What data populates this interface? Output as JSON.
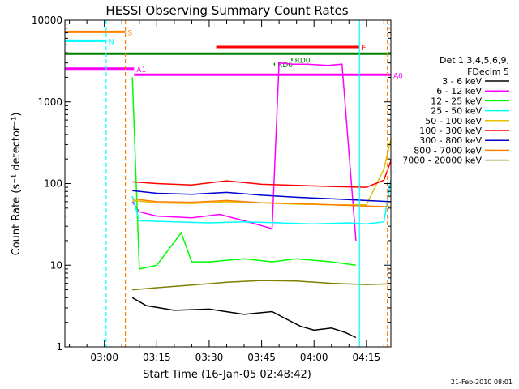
{
  "chart_data": {
    "type": "line",
    "title": "HESSI Observing Summary Count Rates",
    "xlabel": "Start Time (16-Jan-05 02:48:42)",
    "ylabel": "Count Rate (s⁻¹ detector⁻¹)",
    "yscale": "log",
    "ylim": [
      1,
      10000
    ],
    "xlim": [
      "02:48:42",
      "04:22:00"
    ],
    "x_ticks": [
      "03:00",
      "03:15",
      "03:30",
      "03:45",
      "04:00",
      "04:15"
    ],
    "y_ticks": [
      "1",
      "10",
      "100",
      "1000",
      "10000"
    ],
    "footer": "21-Feb-2010 08:01",
    "legend": {
      "header_1": "Det 1,3,4,5,6,9,",
      "header_2": "FDecim 5",
      "placement": "right",
      "entries": [
        {
          "label": "3 - 6 keV",
          "color": "#000000"
        },
        {
          "label": "6 - 12 keV",
          "color": "#ff00ff"
        },
        {
          "label": "12 - 25 keV",
          "color": "#00ff00"
        },
        {
          "label": "25 - 50 keV",
          "color": "#00ffff"
        },
        {
          "label": "50 - 100 keV",
          "color": "#e0c000"
        },
        {
          "label": "100 - 300 keV",
          "color": "#ff0000"
        },
        {
          "label": "300 - 800 keV",
          "color": "#0000cc"
        },
        {
          "label": "800 - 7000 keV",
          "color": "#ff8000"
        },
        {
          "label": "7000 - 20000 keV",
          "color": "#808000"
        }
      ]
    },
    "flags": [
      {
        "label": "S",
        "color": "#ff8000",
        "start": "02:48:42",
        "end": "03:06:00",
        "level": 7200
      },
      {
        "label": "N",
        "color": "#00ffff",
        "start": "02:48:42",
        "end": "03:00:30",
        "level": 5600
      },
      {
        "label": "F",
        "color": "#ff0000",
        "start": "03:32:00",
        "end": "04:13:00",
        "level": 4700
      },
      {
        "label": "",
        "color": "#008000",
        "start": "02:48:42",
        "end": "04:22:00",
        "level": 3900
      },
      {
        "label": "A1",
        "color": "#ff00ff",
        "start": "02:48:42",
        "end": "03:08:30",
        "level": 2550
      },
      {
        "label": "A0",
        "color": "#ff00ff",
        "start": "03:08:30",
        "end": "04:22:00",
        "level": 2150
      },
      {
        "label": "RD6",
        "color": "#008000",
        "start": "03:48:30",
        "end": "03:48:50",
        "level": 2900
      },
      {
        "label": "RD0",
        "color": "#008000",
        "start": "03:53:30",
        "end": "03:53:50",
        "level": 3300
      }
    ],
    "series": [
      {
        "name": "3 - 6 keV",
        "color": "#000000",
        "x": [
          "03:08",
          "03:12",
          "03:20",
          "03:30",
          "03:40",
          "03:48",
          "03:52",
          "03:56",
          "04:00",
          "04:05",
          "04:09",
          "04:12"
        ],
        "y": [
          4,
          3.2,
          2.8,
          2.9,
          2.5,
          2.7,
          2.2,
          1.8,
          1.6,
          1.7,
          1.5,
          1.3
        ]
      },
      {
        "name": "6 - 12 keV",
        "color": "#ff00ff",
        "x": [
          "03:08",
          "03:10",
          "03:15",
          "03:25",
          "03:33",
          "03:40",
          "03:48",
          "03:50",
          "03:54",
          "03:58",
          "04:04",
          "04:08",
          "04:12"
        ],
        "y": [
          60,
          45,
          40,
          38,
          42,
          35,
          28,
          3000,
          2900,
          2900,
          2800,
          2900,
          20
        ]
      },
      {
        "name": "12 - 25 keV",
        "color": "#00ff00",
        "x": [
          "03:08",
          "03:10",
          "03:15",
          "03:22",
          "03:25",
          "03:30",
          "03:40",
          "03:48",
          "03:55",
          "04:05",
          "04:12"
        ],
        "y": [
          2000,
          9,
          10,
          25,
          11,
          11,
          12,
          11,
          12,
          11,
          10
        ]
      },
      {
        "name": "25 - 50 keV",
        "color": "#00ffff",
        "x": [
          "03:08",
          "03:10",
          "03:20",
          "03:30",
          "03:40",
          "03:50",
          "04:00",
          "04:10",
          "04:15",
          "04:20",
          "04:22"
        ],
        "y": [
          70,
          35,
          34,
          33,
          34,
          33,
          32,
          33,
          32,
          34,
          110
        ]
      },
      {
        "name": "50 - 100 keV",
        "color": "#e0c000",
        "x": [
          "03:08",
          "03:15",
          "03:25",
          "03:35",
          "03:45",
          "03:55",
          "04:05",
          "04:15",
          "04:20",
          "04:22"
        ],
        "y": [
          62,
          58,
          57,
          60,
          58,
          56,
          55,
          55,
          150,
          350
        ]
      },
      {
        "name": "100 - 300 keV",
        "color": "#ff0000",
        "x": [
          "03:08",
          "03:15",
          "03:25",
          "03:35",
          "03:45",
          "03:55",
          "04:05",
          "04:15",
          "04:20",
          "04:22"
        ],
        "y": [
          105,
          100,
          96,
          108,
          98,
          95,
          92,
          90,
          110,
          190
        ]
      },
      {
        "name": "300 - 800 keV",
        "color": "#0000cc",
        "x": [
          "03:08",
          "03:15",
          "03:25",
          "03:35",
          "03:45",
          "03:55",
          "04:05",
          "04:15",
          "04:22"
        ],
        "y": [
          82,
          76,
          74,
          78,
          72,
          68,
          65,
          62,
          60
        ]
      },
      {
        "name": "800 - 7000 keV",
        "color": "#ff8000",
        "x": [
          "03:08",
          "03:15",
          "03:25",
          "03:35",
          "03:45",
          "03:55",
          "04:05",
          "04:15",
          "04:22"
        ],
        "y": [
          65,
          60,
          59,
          62,
          58,
          57,
          55,
          53,
          52
        ]
      },
      {
        "name": "7000 - 20000 keV",
        "color": "#808000",
        "x": [
          "03:08",
          "03:15",
          "03:25",
          "03:35",
          "03:45",
          "03:55",
          "04:05",
          "04:15",
          "04:22"
        ],
        "y": [
          5,
          5.3,
          5.7,
          6.2,
          6.5,
          6.4,
          6.0,
          5.8,
          5.9
        ]
      }
    ],
    "vertical_markers": [
      {
        "x": "03:00:30",
        "color": "#00ffff",
        "style": "dashed"
      },
      {
        "x": "03:06:00",
        "color": "#ff8000",
        "style": "dashed"
      },
      {
        "x": "04:13:00",
        "color": "#00ffff",
        "style": "solid"
      },
      {
        "x": "04:21:00",
        "color": "#ff8000",
        "style": "dashed"
      }
    ]
  }
}
